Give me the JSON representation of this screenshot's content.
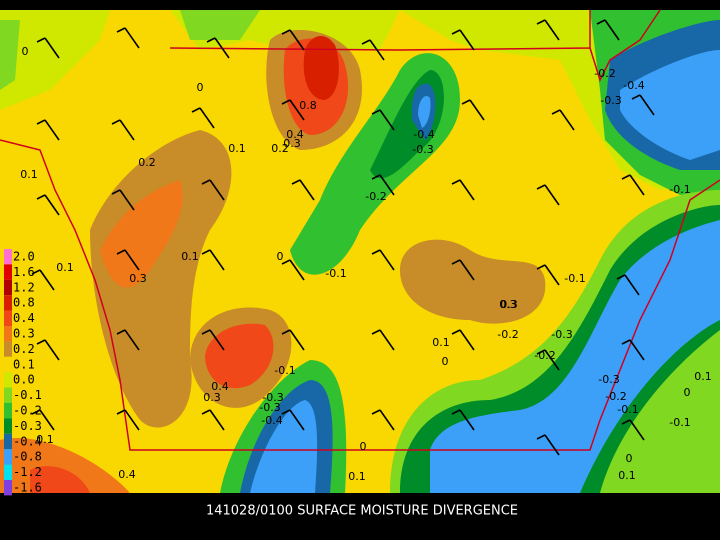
{
  "caption": "141028/0100 SURFACE MOISTURE DIVERGENCE",
  "legend": [
    {
      "label": "2.0",
      "color": "#ff70d0"
    },
    {
      "label": "1.6",
      "color": "#e00000"
    },
    {
      "label": "1.2",
      "color": "#b00000"
    },
    {
      "label": "0.8",
      "color": "#d82000"
    },
    {
      "label": "0.4",
      "color": "#f04818"
    },
    {
      "label": "0.3",
      "color": "#f07818"
    },
    {
      "label": "0.2",
      "color": "#c88c28"
    },
    {
      "label": "0.1",
      "color": "#f8d800"
    },
    {
      "label": "0.0",
      "color": "#d0e800"
    },
    {
      "label": "-0.1",
      "color": "#80d820"
    },
    {
      "label": "-0.2",
      "color": "#30c030"
    },
    {
      "label": "-0.3",
      "color": "#008c28"
    },
    {
      "label": "-0.4",
      "color": "#1868a8"
    },
    {
      "label": "-0.8",
      "color": "#3ca0f8"
    },
    {
      "label": "-1.2",
      "color": "#00e0f0"
    },
    {
      "label": "-1.6",
      "color": "#8040e0"
    }
  ],
  "contour_labels": [
    "0",
    "0",
    "0.1",
    "0.2",
    "0.1",
    "0.2",
    "0.3",
    "0.4",
    "0.8",
    "0.1",
    "0.3",
    "-0.4",
    "-0.3",
    "-0.2",
    "0.1",
    "0",
    "-0.1",
    "0.3",
    "0.4",
    "0.3",
    "-0.1",
    "-0.3",
    "-0.4",
    "0.1",
    "0",
    "0.3",
    "-0.2",
    "-0.3",
    "-0.2",
    "-0.1",
    "-0.2",
    "-0.3",
    "-0.4",
    "-0.1",
    "-0.3",
    "-0.2",
    "-0.1",
    "0.1",
    "0",
    "0",
    "-0.1",
    "0.1",
    "0",
    "0.1",
    "0.4",
    "0.1",
    "-0.3"
  ]
}
